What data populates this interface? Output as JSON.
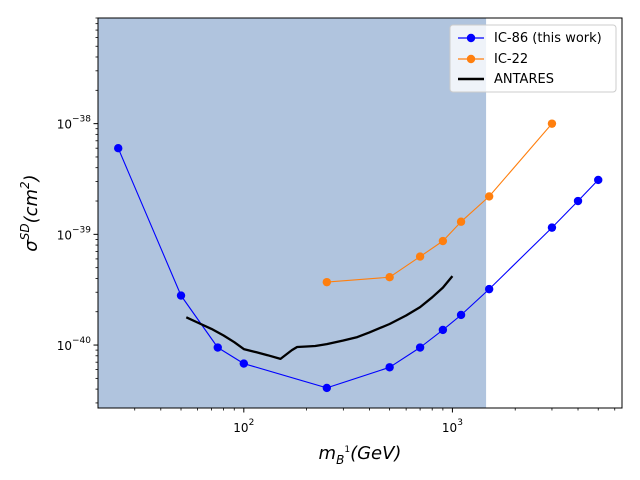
{
  "chart_data": {
    "type": "line",
    "title": "",
    "xscale": "log",
    "yscale": "log",
    "xlim": [
      20,
      6500
    ],
    "ylim": [
      2.7e-41,
      9e-38
    ],
    "xlabel": {
      "base": "m",
      "sub": "B",
      "sup": "1",
      "rest": "(GeV)"
    },
    "ylabel": {
      "base": "σ",
      "sup": "SD",
      "rest": "(cm",
      "sup2": "2",
      "end": ")"
    },
    "x_ticks": [
      {
        "value": 100,
        "base": "10",
        "exp": "2"
      },
      {
        "value": 1000,
        "base": "10",
        "exp": "3"
      }
    ],
    "y_ticks": [
      {
        "value": 1e-40,
        "base": "10",
        "exp": "−40"
      },
      {
        "value": 1e-39,
        "base": "10",
        "exp": "−39"
      },
      {
        "value": 1e-38,
        "base": "10",
        "exp": "−38"
      }
    ],
    "excluded_region": {
      "x_from": 20,
      "x_to": 1450,
      "color": "#b0c4de"
    },
    "series": [
      {
        "name": "IC-86 (this work)",
        "color": "#0000ff",
        "marker": true,
        "x": [
          25,
          50,
          75,
          100,
          250,
          500,
          700,
          900,
          1100,
          1500,
          3000,
          4000,
          5000
        ],
        "y": [
          6e-39,
          2.8e-40,
          9.5e-41,
          6.8e-41,
          4.1e-41,
          6.3e-41,
          9.5e-41,
          1.37e-40,
          1.87e-40,
          3.2e-40,
          1.15e-39,
          2e-39,
          3.1e-39
        ]
      },
      {
        "name": "IC-22",
        "color": "#ff7f0e",
        "marker": true,
        "x": [
          250,
          500,
          700,
          900,
          1100,
          1500,
          3000
        ],
        "y": [
          3.7e-40,
          4.1e-40,
          6.3e-40,
          8.7e-40,
          1.3e-39,
          2.2e-39,
          1e-38
        ]
      },
      {
        "name": "ANTARES",
        "color": "#000000",
        "marker": false,
        "x": [
          53,
          60,
          70,
          80,
          90,
          100,
          115,
          130,
          150,
          170,
          180,
          200,
          220,
          250,
          300,
          350,
          400,
          500,
          600,
          700,
          800,
          900,
          1000
        ],
        "y": [
          1.78e-40,
          1.6e-40,
          1.4e-40,
          1.22e-40,
          1.06e-40,
          9.2e-41,
          8.6e-41,
          8.1e-41,
          7.5e-41,
          9e-41,
          9.6e-41,
          9.7e-41,
          9.8e-41,
          1.02e-40,
          1.1e-40,
          1.18e-40,
          1.3e-40,
          1.55e-40,
          1.85e-40,
          2.2e-40,
          2.7e-40,
          3.3e-40,
          4.2e-40
        ]
      }
    ],
    "legend": {
      "position": "top-right"
    }
  }
}
